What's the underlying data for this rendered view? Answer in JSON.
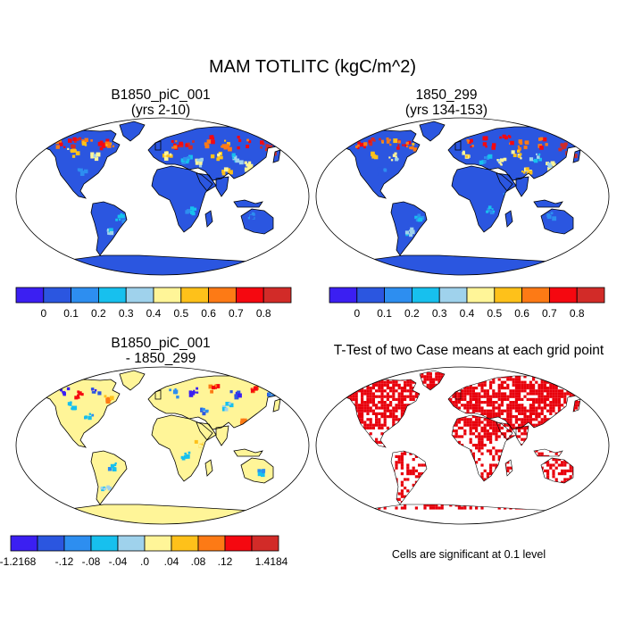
{
  "title": "MAM TOTLITC (kgC/m^2)",
  "panels": [
    {
      "title_line1": "B1850_piC_001",
      "title_line2": "(yrs 2-10)"
    },
    {
      "title_line1": "1850_299",
      "title_line2": "(yrs 134-153)"
    },
    {
      "title_line1": "B1850_piC_001",
      "title_line2": "- 1850_299"
    },
    {
      "title_line1": "T-Test of two Case means at each grid point"
    }
  ],
  "significance_note": "Cells are significant at 0.1 level",
  "colorbars": {
    "absolute": {
      "colors": [
        "#3b1ff2",
        "#2b56e0",
        "#2d8ef0",
        "#17c0ee",
        "#9fd2ec",
        "#fff598",
        "#fec11a",
        "#fd7a15",
        "#f50810",
        "#d22b28"
      ],
      "labels": [
        "0",
        "0.1",
        "0.2",
        "0.3",
        "0.4",
        "0.5",
        "0.6",
        "0.7",
        "0.8"
      ]
    },
    "difference": {
      "colors": [
        "#3b1ff2",
        "#2b56e0",
        "#2d8ef0",
        "#17c0ee",
        "#9fd2ec",
        "#fff598",
        "#fec11a",
        "#fd7a15",
        "#f50810",
        "#d22b28"
      ],
      "labels": [
        "-1.2168",
        "-.12",
        "-.08",
        "-.04",
        ".0",
        ".04",
        ".08",
        ".12",
        "1.4184"
      ]
    }
  },
  "colors": {
    "ocean": "#ffffff",
    "coast": "#000000",
    "significant": "#e8000b"
  }
}
